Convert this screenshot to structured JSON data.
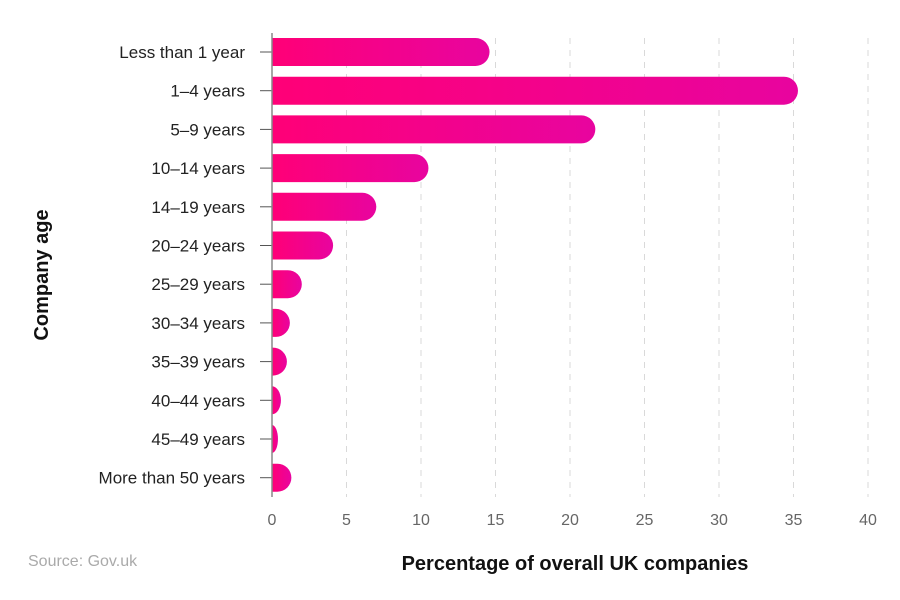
{
  "chart_data": {
    "type": "bar",
    "orientation": "horizontal",
    "categories": [
      "Less than 1 year",
      "1–4 years",
      "5–9 years",
      "10–14 years",
      "14–19 years",
      "20–24 years",
      "25–29 years",
      "30–34 years",
      "35–39 years",
      "40–44 years",
      "45–49 years",
      "More than 50 years"
    ],
    "values": [
      14.6,
      35.3,
      21.7,
      10.5,
      7.0,
      4.1,
      2.0,
      1.2,
      1.0,
      0.6,
      0.4,
      1.3
    ],
    "xlabel": "Percentage of overall UK companies",
    "ylabel": "Company age",
    "xlim": [
      0,
      40
    ],
    "xticks": [
      "0",
      "5",
      "10",
      "15",
      "20",
      "25",
      "30",
      "35",
      "40"
    ],
    "grid": "vertical dashed",
    "colors": {
      "bar_start": "#ff0077",
      "bar_end": "#e8049f"
    }
  },
  "source": "Source: Gov.uk"
}
